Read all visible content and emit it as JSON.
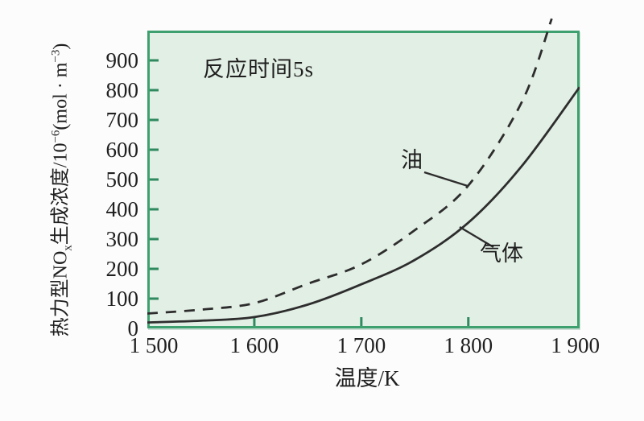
{
  "colors": {
    "page_bg": "#fcfcfc",
    "plot_bg": "#e2efe5",
    "plot_border": "#3fa06f",
    "tick_mark": "#2f8a5f",
    "curve": "#2d2d2d",
    "text": "#1f1f1f"
  },
  "y_label": {
    "p1": "热力型NO",
    "sub": "x",
    "p2": "生成浓度/10",
    "sup1": "−6",
    "p3": "(mol · m",
    "sup2": "−3",
    "p4": ")"
  },
  "chart_data": {
    "type": "line",
    "title": "",
    "xlabel": "温度/K",
    "ylabel": "热力型NOx生成浓度/10−6(mol·m−3)",
    "xlim": [
      1500,
      1904
    ],
    "ylim": [
      0,
      1000
    ],
    "grid": false,
    "legend_position": "inline-labels",
    "annotations": [
      "反应时间5s"
    ],
    "x_ticks": [
      {
        "value": 1500,
        "label": "1 500",
        "mark": false
      },
      {
        "value": 1600,
        "label": "1 600",
        "mark": true
      },
      {
        "value": 1700,
        "label": "1 700",
        "mark": true
      },
      {
        "value": 1800,
        "label": "1 800",
        "mark": true
      },
      {
        "value": 1900,
        "label": "1 900",
        "mark": false
      }
    ],
    "y_ticks": [
      {
        "value": 0,
        "label": "0",
        "mark": false
      },
      {
        "value": 100,
        "label": "100",
        "mark": true
      },
      {
        "value": 200,
        "label": "200",
        "mark": true
      },
      {
        "value": 300,
        "label": "300",
        "mark": true
      },
      {
        "value": 400,
        "label": "400",
        "mark": true
      },
      {
        "value": 500,
        "label": "500",
        "mark": true
      },
      {
        "value": 600,
        "label": "600",
        "mark": true
      },
      {
        "value": 700,
        "label": "700",
        "mark": true
      },
      {
        "value": 800,
        "label": "800",
        "mark": true
      },
      {
        "value": 900,
        "label": "900",
        "mark": true
      }
    ],
    "series": [
      {
        "name": "油",
        "style": "dashed",
        "points": [
          [
            1500,
            50
          ],
          [
            1550,
            63
          ],
          [
            1600,
            85
          ],
          [
            1650,
            150
          ],
          [
            1700,
            215
          ],
          [
            1750,
            330
          ],
          [
            1800,
            480
          ],
          [
            1850,
            760
          ],
          [
            1878,
            1040
          ]
        ]
      },
      {
        "name": "气体",
        "style": "solid",
        "points": [
          [
            1500,
            20
          ],
          [
            1550,
            26
          ],
          [
            1600,
            38
          ],
          [
            1650,
            80
          ],
          [
            1700,
            148
          ],
          [
            1750,
            230
          ],
          [
            1800,
            355
          ],
          [
            1850,
            545
          ],
          [
            1904,
            810
          ]
        ]
      }
    ]
  }
}
